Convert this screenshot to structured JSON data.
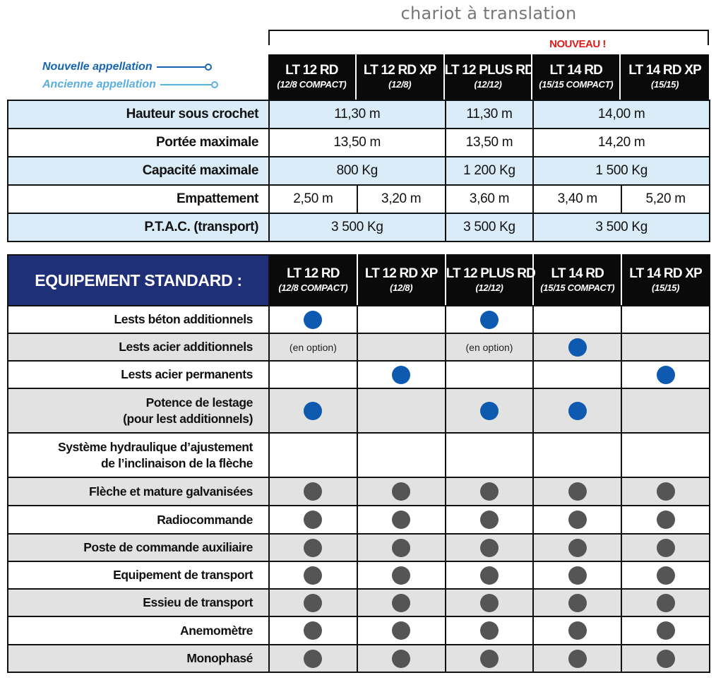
{
  "title": "chariot à translation",
  "nouveau": "NOUVEAU !",
  "legend": {
    "new": {
      "label": "Nouvelle appellation",
      "color": "#1565b3"
    },
    "old": {
      "label": "Ancienne appellation",
      "color": "#5aaee0"
    }
  },
  "models": [
    {
      "name": "LT 12 RD",
      "old": "(12/8 COMPACT)"
    },
    {
      "name": "LT 12 RD XP",
      "old": "(12/8)"
    },
    {
      "name": "LT 12 PLUS RD",
      "old": "(12/12)"
    },
    {
      "name": "LT 14 RD",
      "old": "(15/15 COMPACT)"
    },
    {
      "name": "LT 14 RD XP",
      "old": "(15/15)"
    }
  ],
  "specs": [
    {
      "label": "Hauteur sous crochet",
      "v1": "11,30 m",
      "v2": "11,30 m",
      "v3": "14,00 m"
    },
    {
      "label": "Portée maximale",
      "v1": "13,50 m",
      "v2": "13,50 m",
      "v3": "14,20 m"
    },
    {
      "label": "Capacité maximale",
      "v1": "800 Kg",
      "v2": "1 200 Kg",
      "v3": "1 500 Kg"
    },
    {
      "label": "Empattement",
      "values": [
        "2,50 m",
        "3,20 m",
        "3,60 m",
        "3,40 m",
        "5,20 m"
      ]
    },
    {
      "label": "P.T.A.C. (transport)",
      "v1": "3 500 Kg",
      "v2": "3 500 Kg",
      "v3": "3 500 Kg"
    }
  ],
  "equipment_title": "EQUIPEMENT STANDARD :",
  "option_text": "(en option)",
  "colors": {
    "blue_dot": "#0d5ab0",
    "gray_dot": "#555555",
    "header_blue": "#1f2f78"
  },
  "equipment": [
    {
      "label": "Lests béton additionnels",
      "cells": [
        "blue",
        "",
        "blue",
        "",
        ""
      ]
    },
    {
      "label": "Lests acier additionnels",
      "cells": [
        "option",
        "",
        "option",
        "blue",
        ""
      ]
    },
    {
      "label": "Lests acier permanents",
      "cells": [
        "",
        "blue",
        "",
        "",
        "blue"
      ]
    },
    {
      "label_lines": [
        "Potence de lestage",
        "(pour lest additionnels)"
      ],
      "cells": [
        "blue",
        "",
        "blue",
        "blue",
        ""
      ]
    },
    {
      "label_lines": [
        "Système hydraulique d’ajustement",
        "de l’inclinaison de la flèche"
      ],
      "cells": [
        "",
        "",
        "",
        "",
        ""
      ]
    },
    {
      "label": "Flèche et mature galvanisées",
      "cells": [
        "gray",
        "gray",
        "gray",
        "gray",
        "gray"
      ]
    },
    {
      "label": "Radiocommande",
      "cells": [
        "gray",
        "gray",
        "gray",
        "gray",
        "gray"
      ]
    },
    {
      "label": "Poste de commande auxiliaire",
      "cells": [
        "gray",
        "gray",
        "gray",
        "gray",
        "gray"
      ]
    },
    {
      "label": "Equipement de transport",
      "cells": [
        "gray",
        "gray",
        "gray",
        "gray",
        "gray"
      ]
    },
    {
      "label": "Essieu de transport",
      "cells": [
        "gray",
        "gray",
        "gray",
        "gray",
        "gray"
      ]
    },
    {
      "label": "Anemomètre",
      "cells": [
        "gray",
        "gray",
        "gray",
        "gray",
        "gray"
      ]
    },
    {
      "label": "Monophasé",
      "cells": [
        "gray",
        "gray",
        "gray",
        "gray",
        "gray"
      ]
    }
  ]
}
